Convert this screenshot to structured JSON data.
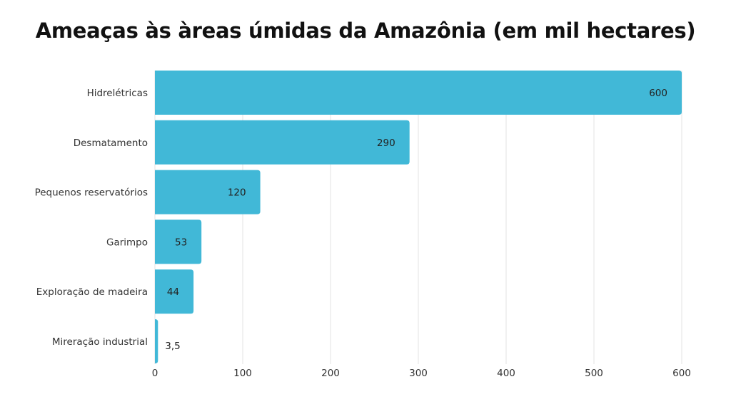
{
  "chart_data": {
    "type": "bar",
    "orientation": "horizontal",
    "title": "Ameaças às àreas úmidas da Amazônia (em mil hectares)",
    "categories": [
      "Hidrelétricas",
      "Desmatamento",
      "Pequenos reservatórios",
      "Garimpo",
      "Exploração de madeira",
      "Mireração industrial"
    ],
    "values": [
      600,
      290,
      120,
      53,
      44,
      3.5
    ],
    "value_labels": [
      "600",
      "290",
      "120",
      "53",
      "44",
      "3,5"
    ],
    "xlim": [
      0,
      600
    ],
    "xticks": [
      0,
      100,
      200,
      300,
      400,
      500,
      600
    ],
    "xlabel": "",
    "ylabel": "",
    "grid": true,
    "bar_color": "#41b8d7"
  }
}
